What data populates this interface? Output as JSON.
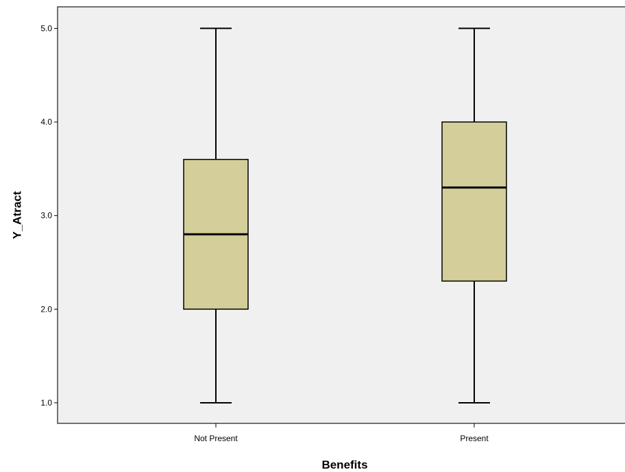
{
  "chart_data": {
    "type": "box",
    "xlabel": "Benefits",
    "ylabel": "Y_Atract",
    "ylim": [
      0.78,
      5.23
    ],
    "y_ticks": [
      1.0,
      2.0,
      3.0,
      4.0,
      5.0
    ],
    "y_tick_labels": [
      "1.0",
      "2.0",
      "3.0",
      "4.0",
      "5.0"
    ],
    "categories": [
      "Not Present",
      "Present"
    ],
    "boxes": [
      {
        "category": "Not Present",
        "min": 1.0,
        "q1": 2.0,
        "median": 2.8,
        "q3": 3.6,
        "max": 5.0
      },
      {
        "category": "Present",
        "min": 1.0,
        "q1": 2.3,
        "median": 3.3,
        "q3": 4.0,
        "max": 5.0
      }
    ],
    "grid": false,
    "legend": "none",
    "colors": {
      "plot_background": "#f0f0f0",
      "box_fill": "#d3ce9a",
      "line": "#000000",
      "frame": "#444444"
    }
  }
}
